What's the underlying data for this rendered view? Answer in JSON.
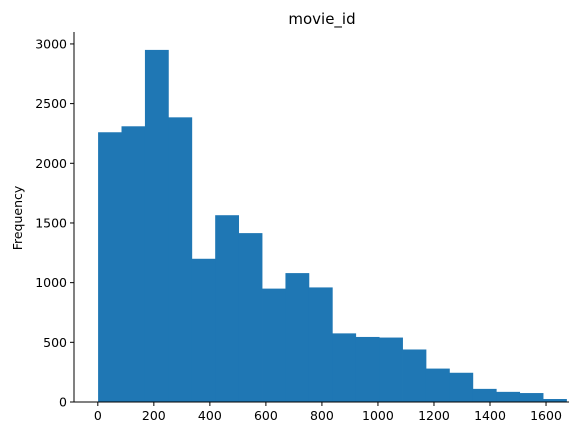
{
  "chart_data": {
    "type": "bar",
    "title": "movie_id",
    "xlabel": "",
    "ylabel": "Frequency",
    "xlim": [
      -85,
      1682
    ],
    "ylim": [
      0,
      3100
    ],
    "xticks": [
      0,
      200,
      400,
      600,
      800,
      1000,
      1200,
      1400,
      1600
    ],
    "yticks": [
      0,
      500,
      1000,
      1500,
      2000,
      2500,
      3000
    ],
    "bin_edges": [
      1,
      84.6,
      168.2,
      251.8,
      335.4,
      419.0,
      502.6,
      586.2,
      669.8,
      753.4,
      837.0,
      920.6,
      1004.2,
      1087.8,
      1171.4,
      1255.0,
      1338.6,
      1422.2,
      1505.8,
      1589.4
    ],
    "values": [
      2260,
      2310,
      2950,
      2385,
      1200,
      1565,
      1415,
      950,
      1080,
      960,
      575,
      545,
      540,
      440,
      280,
      245,
      110,
      85,
      75,
      25
    ],
    "color": "#1f77b4",
    "grid": false
  }
}
